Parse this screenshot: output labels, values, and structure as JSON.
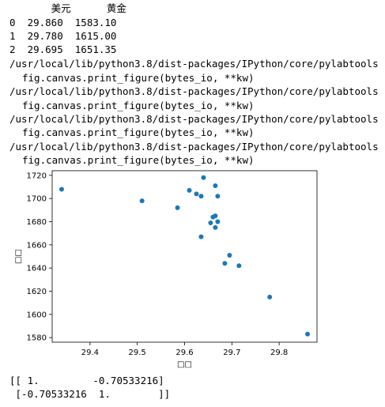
{
  "df_header": "       美元      黄金",
  "df_rows": [
    "0  29.860  1583.10",
    "1  29.780  1615.00",
    "2  29.695  1651.35"
  ],
  "warnings": [
    {
      "path": "/usr/local/lib/python3.8/dist-packages/IPython/core/pylabtools",
      "code": "fig.canvas.print_figure(bytes_io, **kw)"
    },
    {
      "path": "/usr/local/lib/python3.8/dist-packages/IPython/core/pylabtools",
      "code": "fig.canvas.print_figure(bytes_io, **kw)"
    },
    {
      "path": "/usr/local/lib/python3.8/dist-packages/IPython/core/pylabtools",
      "code": "fig.canvas.print_figure(bytes_io, **kw)"
    },
    {
      "path": "/usr/local/lib/python3.8/dist-packages/IPython/core/pylabtools",
      "code": "fig.canvas.print_figure(bytes_io, **kw)"
    }
  ],
  "corr_lines": [
    "[[ 1.         -0.70533216]",
    " [-0.70533216  1.        ]]"
  ],
  "chart_data": {
    "type": "scatter",
    "xlabel": "□□",
    "ylabel": "□□",
    "xlim": [
      29.32,
      29.88
    ],
    "ylim": [
      1576,
      1724
    ],
    "xticks": [
      29.4,
      29.5,
      29.6,
      29.7,
      29.8
    ],
    "xtick_labels": [
      "29.4",
      "29.5",
      "29.6",
      "29.7",
      "29.8"
    ],
    "yticks": [
      1580,
      1600,
      1620,
      1640,
      1660,
      1680,
      1700,
      1720
    ],
    "ytick_labels": [
      "1580",
      "1600",
      "1620",
      "1640",
      "1660",
      "1680",
      "1700",
      "1720"
    ],
    "point_color": "#1f77b4",
    "grid": false,
    "points": [
      {
        "x": 29.34,
        "y": 1708
      },
      {
        "x": 29.51,
        "y": 1698
      },
      {
        "x": 29.585,
        "y": 1692
      },
      {
        "x": 29.61,
        "y": 1707
      },
      {
        "x": 29.625,
        "y": 1704
      },
      {
        "x": 29.635,
        "y": 1702
      },
      {
        "x": 29.64,
        "y": 1718
      },
      {
        "x": 29.665,
        "y": 1711
      },
      {
        "x": 29.67,
        "y": 1702
      },
      {
        "x": 29.66,
        "y": 1684
      },
      {
        "x": 29.665,
        "y": 1685
      },
      {
        "x": 29.655,
        "y": 1679
      },
      {
        "x": 29.67,
        "y": 1680
      },
      {
        "x": 29.665,
        "y": 1675
      },
      {
        "x": 29.635,
        "y": 1667
      },
      {
        "x": 29.695,
        "y": 1651
      },
      {
        "x": 29.685,
        "y": 1644
      },
      {
        "x": 29.715,
        "y": 1642
      },
      {
        "x": 29.78,
        "y": 1615
      },
      {
        "x": 29.86,
        "y": 1583
      }
    ]
  }
}
